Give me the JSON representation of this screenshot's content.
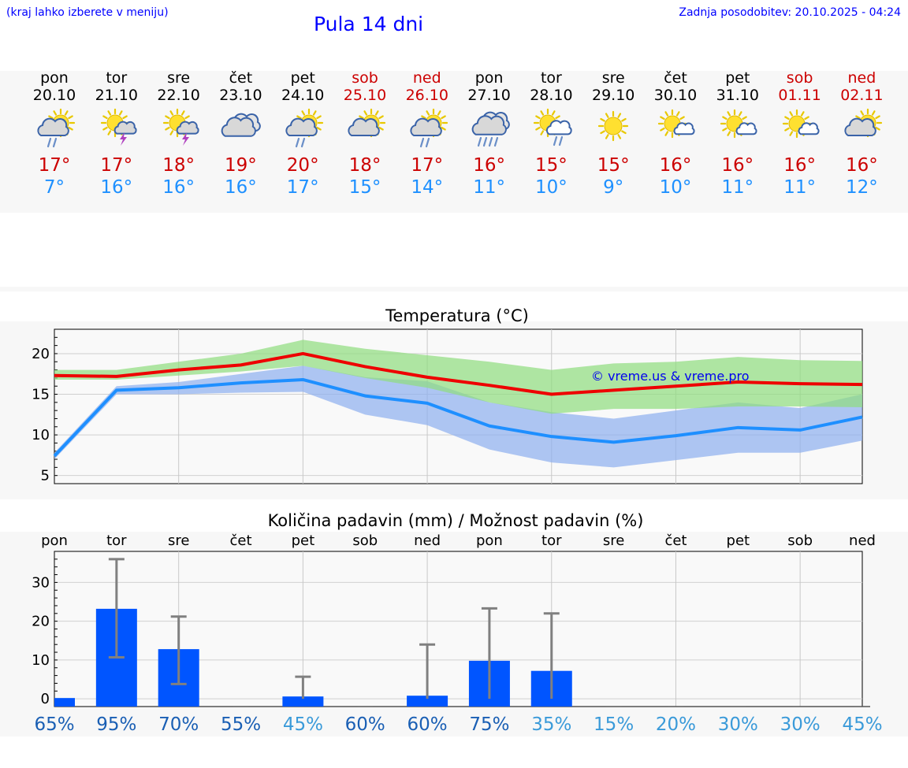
{
  "header": {
    "hint": "(kraj lahko izberete v meniju)",
    "title": "Pula 14 dni",
    "updated": "Zadnja posodobitev: 20.10.2025 - 04:24"
  },
  "days": [
    {
      "name": "pon",
      "date": "20.10",
      "icon": "partly-cloudy-rain-icon",
      "hi": "17°",
      "lo": "7°",
      "weekend": false
    },
    {
      "name": "tor",
      "date": "21.10",
      "icon": "sun-storm-icon",
      "hi": "17°",
      "lo": "16°",
      "weekend": false
    },
    {
      "name": "sre",
      "date": "22.10",
      "icon": "sun-storm-icon",
      "hi": "18°",
      "lo": "16°",
      "weekend": false
    },
    {
      "name": "čet",
      "date": "23.10",
      "icon": "cloudy-icon",
      "hi": "19°",
      "lo": "16°",
      "weekend": false
    },
    {
      "name": "pet",
      "date": "24.10",
      "icon": "partly-cloudy-rain-icon",
      "hi": "20°",
      "lo": "17°",
      "weekend": false
    },
    {
      "name": "sob",
      "date": "25.10",
      "icon": "partly-cloudy-icon",
      "hi": "18°",
      "lo": "15°",
      "weekend": true
    },
    {
      "name": "ned",
      "date": "26.10",
      "icon": "partly-cloudy-rain-icon",
      "hi": "17°",
      "lo": "14°",
      "weekend": true
    },
    {
      "name": "pon",
      "date": "27.10",
      "icon": "heavy-rain-icon",
      "hi": "16°",
      "lo": "11°",
      "weekend": false
    },
    {
      "name": "tor",
      "date": "28.10",
      "icon": "sun-cloud-rain-icon",
      "hi": "15°",
      "lo": "10°",
      "weekend": false
    },
    {
      "name": "sre",
      "date": "29.10",
      "icon": "sun-icon",
      "hi": "15°",
      "lo": "9°",
      "weekend": false
    },
    {
      "name": "čet",
      "date": "30.10",
      "icon": "sun-small-cloud-icon",
      "hi": "16°",
      "lo": "10°",
      "weekend": false
    },
    {
      "name": "pet",
      "date": "31.10",
      "icon": "sun-small-cloud-icon",
      "hi": "16°",
      "lo": "11°",
      "weekend": false
    },
    {
      "name": "sob",
      "date": "01.11",
      "icon": "sun-small-cloud-icon",
      "hi": "16°",
      "lo": "11°",
      "weekend": true
    },
    {
      "name": "ned",
      "date": "02.11",
      "icon": "partly-cloudy-icon",
      "hi": "16°",
      "lo": "12°",
      "weekend": true
    }
  ],
  "colors": {
    "max_line": "#ee0000",
    "min_line": "#1e8fff",
    "max_band": "#90dc80",
    "min_band": "#8fb0ee",
    "bar": "#0055ff",
    "error": "#808080",
    "hi_text": "#cc0000",
    "lo_text": "#1e90ff",
    "pct_dark": "#1a5fb4",
    "pct_light": "#3a9ad9"
  },
  "chart_data": [
    {
      "type": "line",
      "title": "Temperatura (°C)",
      "watermark": "© vreme.us & vreme.pro",
      "ylim": [
        4,
        23
      ],
      "yticks": [
        5,
        10,
        15,
        20
      ],
      "x": [
        0,
        1,
        2,
        3,
        4,
        5,
        6,
        7,
        8,
        9,
        10,
        11,
        12,
        13
      ],
      "series": [
        {
          "name": "max",
          "values": [
            17.3,
            17.2,
            18.0,
            18.6,
            20.0,
            18.4,
            17.1,
            16.1,
            15.0,
            15.5,
            16.0,
            16.5,
            16.3,
            16.2
          ]
        },
        {
          "name": "min",
          "values": [
            7.4,
            15.5,
            15.8,
            16.4,
            16.8,
            14.8,
            13.9,
            11.1,
            9.8,
            9.1,
            9.9,
            10.9,
            10.6,
            12.2
          ]
        },
        {
          "name": "max_low",
          "values": [
            16.8,
            16.8,
            17.3,
            17.8,
            18.5,
            17.0,
            15.8,
            14.0,
            12.6,
            13.2,
            13.2,
            13.5,
            13.5,
            13.4
          ]
        },
        {
          "name": "max_high",
          "values": [
            18.0,
            18.0,
            19.0,
            20.0,
            21.7,
            20.6,
            19.8,
            19.0,
            18.0,
            18.8,
            19.0,
            19.6,
            19.2,
            19.1
          ]
        },
        {
          "name": "min_low",
          "values": [
            7.0,
            15.0,
            15.0,
            15.2,
            15.3,
            12.5,
            11.2,
            8.2,
            6.6,
            6.0,
            6.9,
            7.8,
            7.8,
            9.3
          ]
        },
        {
          "name": "min_high",
          "values": [
            7.8,
            16.0,
            16.5,
            17.5,
            18.5,
            17.1,
            16.6,
            14.0,
            12.8,
            12.0,
            13.0,
            14.0,
            13.3,
            15.0
          ]
        }
      ]
    },
    {
      "type": "bar",
      "title": "Količina padavin (mm) / Možnost padavin (%)",
      "ylim": [
        -2,
        38
      ],
      "yticks": [
        0,
        10,
        20,
        30
      ],
      "categories": [
        "pon",
        "tor",
        "sre",
        "čet",
        "pet",
        "sob",
        "ned",
        "pon",
        "tor",
        "sre",
        "čet",
        "pet",
        "sob",
        "ned"
      ],
      "values": [
        0.2,
        23.2,
        12.8,
        0,
        0.6,
        0,
        0.8,
        9.8,
        7.2,
        0,
        0,
        0,
        0,
        0
      ],
      "err_low": [
        0,
        10.7,
        3.8,
        0,
        0,
        0,
        0,
        0,
        0,
        0,
        0,
        0,
        0,
        0
      ],
      "err_high": [
        0,
        36.0,
        21.2,
        0,
        5.7,
        0,
        14.0,
        23.3,
        22.0,
        0,
        0,
        0,
        0,
        0
      ],
      "probability": [
        "65%",
        "95%",
        "70%",
        "55%",
        "45%",
        "60%",
        "60%",
        "75%",
        "35%",
        "15%",
        "20%",
        "30%",
        "30%",
        "45%"
      ],
      "prob_values": [
        65,
        95,
        70,
        55,
        45,
        60,
        60,
        75,
        35,
        15,
        20,
        30,
        30,
        45
      ]
    }
  ]
}
